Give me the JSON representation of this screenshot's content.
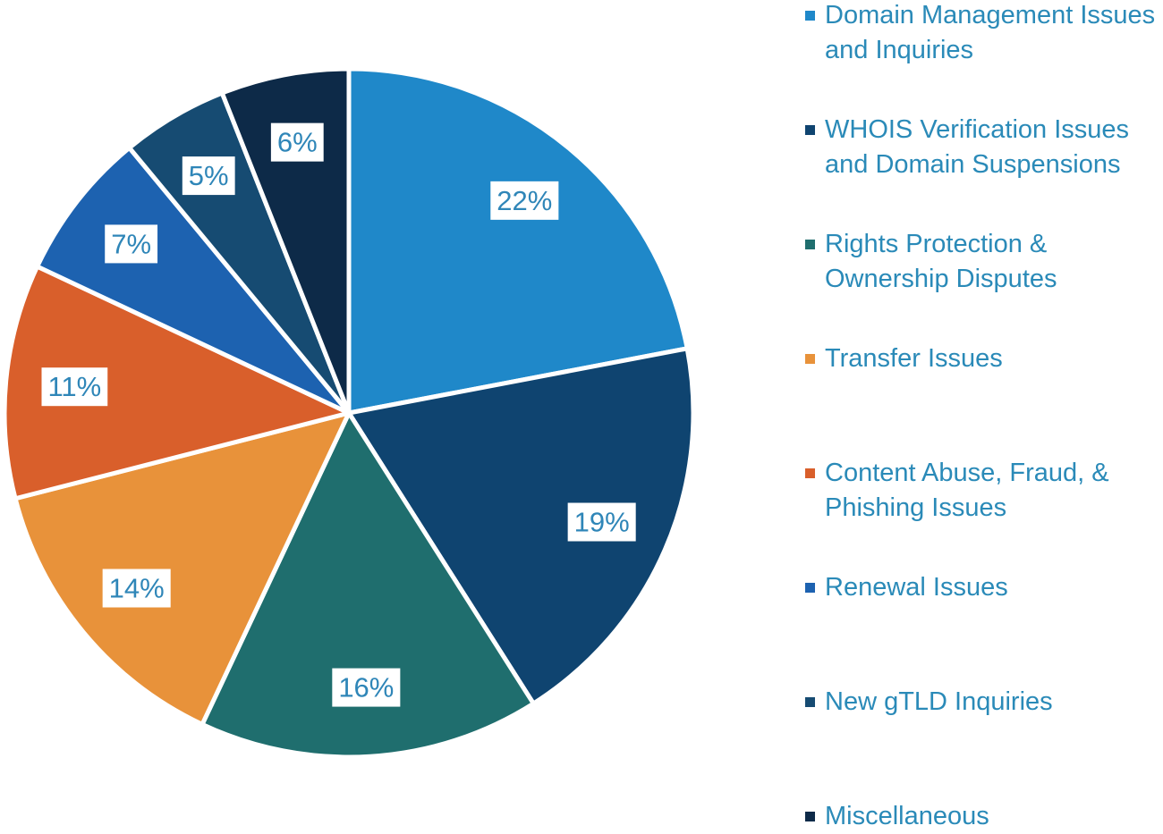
{
  "chart_data": {
    "type": "pie",
    "categories": [
      "Domain Management Issues and Inquiries",
      "WHOIS Verification Issues and Domain Suspensions",
      "Rights Protection & Ownership Disputes",
      "Transfer Issues",
      "Content Abuse, Fraud, & Phishing Issues",
      "Renewal Issues",
      "New gTLD Inquiries",
      "Miscellaneous"
    ],
    "values": [
      22,
      19,
      16,
      14,
      11,
      7,
      5,
      6
    ],
    "value_labels": [
      "22%",
      "19%",
      "16%",
      "14%",
      "11%",
      "7%",
      "5%",
      "6%"
    ],
    "colors": [
      "#1f88c9",
      "#0f4470",
      "#1f6e6e",
      "#e8923a",
      "#d95f2b",
      "#1d62b0",
      "#164b72",
      "#0d2a48"
    ],
    "legend": "right"
  }
}
